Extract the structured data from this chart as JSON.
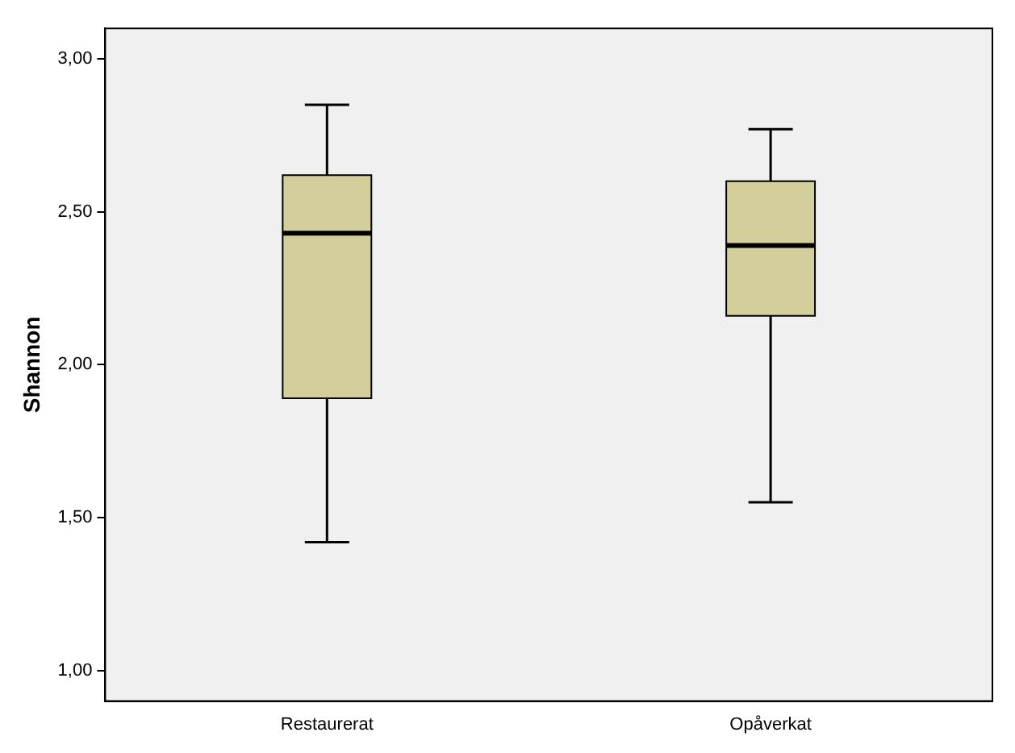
{
  "chart_data": {
    "type": "box",
    "ylabel": "Shannon",
    "categories": [
      "Restaurerat",
      "Opåverkat"
    ],
    "series": [
      {
        "color": "#d3ce9b",
        "boxes": [
          {
            "low": 1.42,
            "q1": 1.89,
            "median": 2.43,
            "q3": 2.62,
            "high": 2.85
          },
          {
            "low": 1.55,
            "q1": 2.16,
            "median": 2.39,
            "q3": 2.6,
            "high": 2.77
          }
        ]
      }
    ],
    "ylim": [
      0.9,
      3.1
    ],
    "yticks": [
      {
        "value": 1,
        "label": "1,00"
      },
      {
        "value": 1.5,
        "label": "1,50"
      },
      {
        "value": 2,
        "label": "2,00"
      },
      {
        "value": 2.5,
        "label": "2,50"
      },
      {
        "value": 3,
        "label": "3,00"
      }
    ],
    "grid": false,
    "legend": false
  }
}
